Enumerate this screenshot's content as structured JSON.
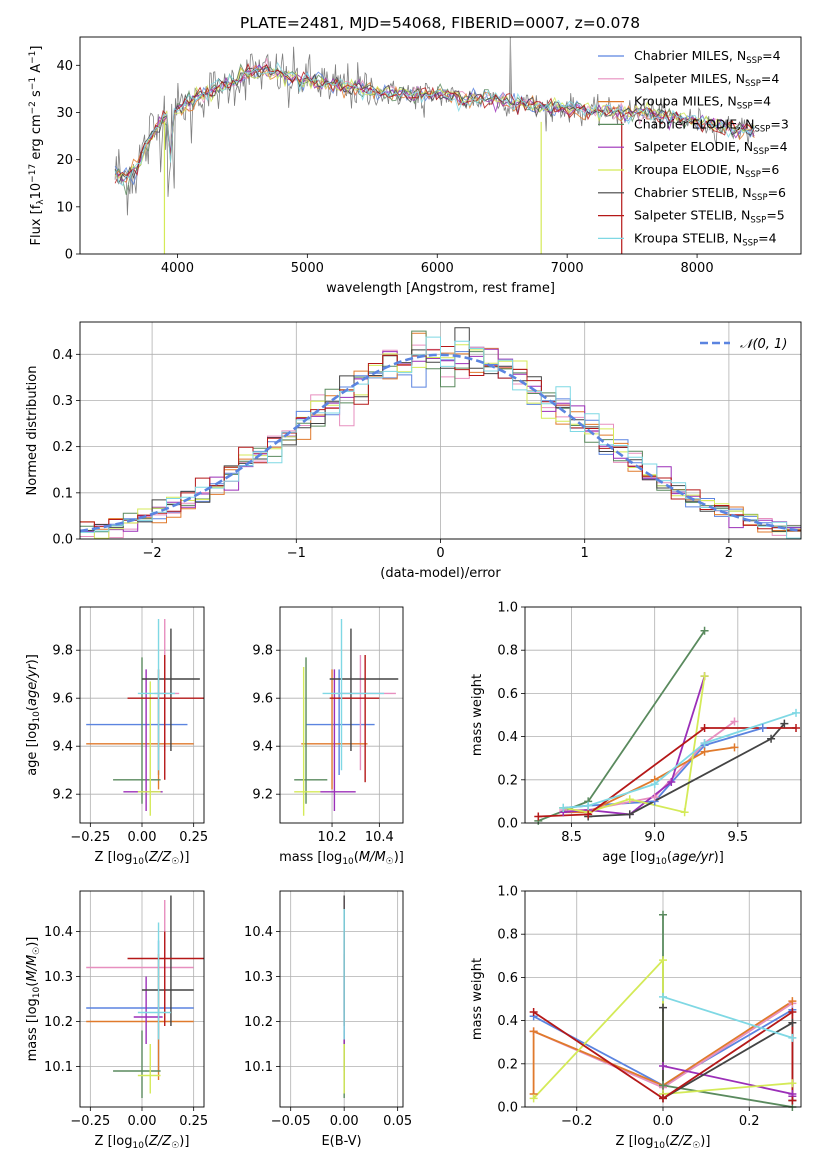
{
  "figure_title": "PLATE=2481, MJD=54068, FIBERID=0007, z=0.078",
  "models": [
    {
      "name": "Chabrier MILES",
      "n_ssp": "4",
      "color": "#5b84e0"
    },
    {
      "name": "Salpeter MILES",
      "n_ssp": "4",
      "color": "#e78fbf"
    },
    {
      "name": "Kroupa MILES",
      "n_ssp": "4",
      "color": "#e07a2c"
    },
    {
      "name": "Chabrier ELODIE",
      "n_ssp": "3",
      "color": "#5a8a5e"
    },
    {
      "name": "Salpeter ELODIE",
      "n_ssp": "4",
      "color": "#9b2fb8"
    },
    {
      "name": "Kroupa ELODIE",
      "n_ssp": "6",
      "color": "#d4ea58"
    },
    {
      "name": "Chabrier STELIB",
      "n_ssp": "6",
      "color": "#444444"
    },
    {
      "name": "Salpeter STELIB",
      "n_ssp": "5",
      "color": "#b51818"
    },
    {
      "name": "Kroupa STELIB",
      "n_ssp": "4",
      "color": "#7fd8e4"
    }
  ],
  "chart_data": [
    {
      "id": "spectrum",
      "type": "line",
      "xlabel": "wavelength [Angstrom, rest frame]",
      "ylabel": "Flux [f_λ 10^-17 erg cm^-2 s^-1 A^-1]",
      "xlim": [
        3250,
        8800
      ],
      "ylim": [
        0,
        46
      ],
      "xticks": [
        4000,
        5000,
        6000,
        7000,
        8000
      ],
      "yticks": [
        0,
        10,
        20,
        30,
        40
      ],
      "grid": false,
      "legend": "top-right",
      "observed_color": "#7f7f7f",
      "spectrum_knots": {
        "x": [
          3520,
          3600,
          3700,
          3800,
          3900,
          4000,
          4200,
          4400,
          4600,
          4800,
          5000,
          5200,
          5400,
          5600,
          5800,
          6000,
          6200,
          6400,
          6600,
          6800,
          7000,
          7200,
          7400,
          7600,
          7800,
          8000,
          8200,
          8440
        ],
        "y": [
          17,
          16,
          19,
          25,
          29,
          31,
          34,
          36,
          39,
          38,
          37,
          36,
          35,
          34,
          34,
          34,
          33,
          33,
          32,
          31,
          31,
          30,
          30,
          30,
          29,
          28,
          27,
          26
        ]
      }
    },
    {
      "id": "residuals",
      "type": "histogram",
      "xlabel": "(data-model)/error",
      "ylabel": "Normed distribution",
      "xlim": [
        -2.5,
        2.5
      ],
      "ylim": [
        0,
        0.47
      ],
      "xticks": [
        -2,
        -1,
        0,
        1,
        2
      ],
      "yticks": [
        0.0,
        0.1,
        0.2,
        0.3,
        0.4
      ],
      "grid": true,
      "legend": "top-right",
      "reference_curve": {
        "label": "𝒩(0, 1)",
        "mean": 0,
        "sigma": 1,
        "color": "#5b84e0"
      },
      "bin_width": 0.1
    },
    {
      "id": "Z_vs_age",
      "type": "errorbar",
      "xlabel": "Z [log10(Z/Z☉)]",
      "ylabel": "age  [log10(age/yr)]",
      "xlim": [
        -0.3,
        0.3
      ],
      "ylim": [
        9.08,
        9.98
      ],
      "xticks": [
        -0.25,
        0.0,
        0.25
      ],
      "yticks": [
        9.2,
        9.4,
        9.6,
        9.8
      ],
      "grid": true,
      "points": [
        {
          "x": 0.08,
          "y": 9.49,
          "xlo": -0.27,
          "xhi": 0.22,
          "ylo": 9.28,
          "yhi": 9.72
        },
        {
          "x": 0.11,
          "y": 9.62,
          "xlo": 0.06,
          "xhi": 0.18,
          "ylo": 9.38,
          "yhi": 9.93
        },
        {
          "x": 0.08,
          "y": 9.41,
          "xlo": -0.27,
          "xhi": 0.25,
          "ylo": 9.22,
          "yhi": 9.72
        },
        {
          "x": 0.0,
          "y": 9.26,
          "xlo": -0.14,
          "xhi": 0.09,
          "ylo": 9.16,
          "yhi": 9.77
        },
        {
          "x": 0.02,
          "y": 9.21,
          "xlo": -0.09,
          "xhi": 0.1,
          "ylo": 9.13,
          "yhi": 9.72
        },
        {
          "x": 0.04,
          "y": 9.21,
          "xlo": -0.02,
          "xhi": 0.09,
          "ylo": 9.11,
          "yhi": 9.67
        },
        {
          "x": 0.14,
          "y": 9.68,
          "xlo": 0.0,
          "xhi": 0.28,
          "ylo": 9.38,
          "yhi": 9.89
        },
        {
          "x": 0.11,
          "y": 9.6,
          "xlo": -0.07,
          "xhi": 0.3,
          "ylo": 9.26,
          "yhi": 9.78
        },
        {
          "x": 0.08,
          "y": 9.62,
          "xlo": -0.02,
          "xhi": 0.16,
          "ylo": 9.3,
          "yhi": 9.93
        }
      ]
    },
    {
      "id": "mass_vs_age",
      "type": "errorbar",
      "xlabel": "mass [log10(M/M☉)]",
      "ylabel": "",
      "xlim": [
        9.98,
        10.5
      ],
      "ylim": [
        9.08,
        9.98
      ],
      "xticks": [
        10.2,
        10.4
      ],
      "yticks": [
        9.2,
        9.4,
        9.6,
        9.8
      ],
      "grid": true,
      "points": [
        {
          "x": 10.23,
          "y": 9.49,
          "xlo": 10.09,
          "xhi": 10.38,
          "ylo": 9.28,
          "yhi": 9.72
        },
        {
          "x": 10.32,
          "y": 9.62,
          "xlo": 10.22,
          "xhi": 10.47,
          "ylo": 9.3,
          "yhi": 9.78
        },
        {
          "x": 10.2,
          "y": 9.41,
          "xlo": 10.07,
          "xhi": 10.35,
          "ylo": 9.22,
          "yhi": 9.72
        },
        {
          "x": 10.09,
          "y": 9.26,
          "xlo": 10.04,
          "xhi": 10.18,
          "ylo": 9.16,
          "yhi": 9.77
        },
        {
          "x": 10.21,
          "y": 9.21,
          "xlo": 10.15,
          "xhi": 10.3,
          "ylo": 9.13,
          "yhi": 9.72
        },
        {
          "x": 10.08,
          "y": 9.21,
          "xlo": 10.04,
          "xhi": 10.15,
          "ylo": 9.11,
          "yhi": 9.73
        },
        {
          "x": 10.28,
          "y": 9.68,
          "xlo": 10.19,
          "xhi": 10.48,
          "ylo": 9.38,
          "yhi": 9.89
        },
        {
          "x": 10.34,
          "y": 9.6,
          "xlo": 10.19,
          "xhi": 10.4,
          "ylo": 9.25,
          "yhi": 9.78
        },
        {
          "x": 10.24,
          "y": 9.62,
          "xlo": 10.16,
          "xhi": 10.42,
          "ylo": 9.3,
          "yhi": 9.93
        }
      ]
    },
    {
      "id": "age_vs_weight",
      "type": "line",
      "xlabel": "age  [log10(age/yr)]",
      "ylabel": "mass weight",
      "xlim": [
        8.22,
        9.88
      ],
      "ylim": [
        0,
        1.0
      ],
      "xticks": [
        8.5,
        9.0,
        9.5
      ],
      "yticks": [
        0.0,
        0.2,
        0.4,
        0.6,
        0.8,
        1.0
      ],
      "grid": true,
      "series": [
        {
          "x": [
            8.45,
            8.6,
            9.0,
            9.3,
            9.65
          ],
          "y": [
            0.07,
            0.08,
            0.1,
            0.36,
            0.44
          ]
        },
        {
          "x": [
            8.45,
            8.6,
            9.0,
            9.3,
            9.48
          ],
          "y": [
            0.06,
            0.06,
            0.12,
            0.37,
            0.47
          ]
        },
        {
          "x": [
            8.45,
            8.6,
            9.0,
            9.3,
            9.48
          ],
          "y": [
            0.05,
            0.05,
            0.2,
            0.33,
            0.35
          ]
        },
        {
          "x": [
            8.3,
            8.6,
            9.3
          ],
          "y": [
            0.01,
            0.1,
            0.89
          ]
        },
        {
          "x": [
            8.45,
            8.6,
            8.85,
            9.1,
            9.3
          ],
          "y": [
            0.05,
            0.06,
            0.04,
            0.19,
            0.68
          ]
        },
        {
          "x": [
            8.45,
            8.6,
            8.85,
            9.18,
            9.3
          ],
          "y": [
            0.07,
            0.05,
            0.11,
            0.05,
            0.68
          ]
        },
        {
          "x": [
            8.6,
            8.85,
            9.7,
            9.78
          ],
          "y": [
            0.03,
            0.04,
            0.39,
            0.46
          ]
        },
        {
          "x": [
            8.3,
            8.6,
            9.3,
            9.85
          ],
          "y": [
            0.03,
            0.04,
            0.44,
            0.44
          ]
        },
        {
          "x": [
            8.45,
            8.6,
            9.0,
            9.3,
            9.85
          ],
          "y": [
            0.07,
            0.08,
            0.18,
            0.37,
            0.51
          ]
        }
      ]
    },
    {
      "id": "Z_vs_mass",
      "type": "errorbar",
      "xlabel": "Z [log10(Z/Z☉)]",
      "ylabel": "mass [log10(M/M☉)]",
      "xlim": [
        -0.3,
        0.3
      ],
      "ylim": [
        10.01,
        10.49
      ],
      "xticks": [
        -0.25,
        0.0,
        0.25
      ],
      "yticks": [
        10.1,
        10.2,
        10.3,
        10.4
      ],
      "grid": true,
      "points": [
        {
          "x": 0.08,
          "y": 10.23,
          "xlo": -0.27,
          "xhi": 0.25,
          "ylo": 10.09,
          "yhi": 10.38
        },
        {
          "x": 0.11,
          "y": 10.32,
          "xlo": -0.27,
          "xhi": 0.25,
          "ylo": 10.22,
          "yhi": 10.47
        },
        {
          "x": 0.08,
          "y": 10.2,
          "xlo": -0.27,
          "xhi": 0.25,
          "ylo": 10.07,
          "yhi": 10.35
        },
        {
          "x": 0.0,
          "y": 10.09,
          "xlo": -0.14,
          "xhi": 0.09,
          "ylo": 10.03,
          "yhi": 10.18
        },
        {
          "x": 0.02,
          "y": 10.21,
          "xlo": -0.04,
          "xhi": 0.1,
          "ylo": 10.15,
          "yhi": 10.3
        },
        {
          "x": 0.04,
          "y": 10.08,
          "xlo": -0.02,
          "xhi": 0.09,
          "ylo": 10.04,
          "yhi": 10.15
        },
        {
          "x": 0.14,
          "y": 10.27,
          "xlo": 0.0,
          "xhi": 0.25,
          "ylo": 10.19,
          "yhi": 10.48
        },
        {
          "x": 0.11,
          "y": 10.34,
          "xlo": -0.07,
          "xhi": 0.3,
          "ylo": 10.19,
          "yhi": 10.4
        },
        {
          "x": 0.08,
          "y": 10.22,
          "xlo": -0.02,
          "xhi": 0.14,
          "ylo": 10.16,
          "yhi": 10.42
        }
      ]
    },
    {
      "id": "ebv_vs_mass",
      "type": "errorbar",
      "xlabel": "E(B-V)",
      "ylabel": "",
      "xlim": [
        -0.06,
        0.055
      ],
      "ylim": [
        10.01,
        10.49
      ],
      "xticks": [
        -0.05,
        0.0,
        0.05
      ],
      "yticks": [
        10.1,
        10.2,
        10.3,
        10.4
      ],
      "grid": true,
      "points": [
        {
          "x": 0.0,
          "y": 10.23,
          "xlo": 0.0,
          "xhi": 0.0,
          "ylo": 10.09,
          "yhi": 10.38
        },
        {
          "x": 0.0,
          "y": 10.32,
          "xlo": 0.0,
          "xhi": 0.0,
          "ylo": 10.22,
          "yhi": 10.47
        },
        {
          "x": 0.0,
          "y": 10.2,
          "xlo": 0.0,
          "xhi": 0.0,
          "ylo": 10.07,
          "yhi": 10.35
        },
        {
          "x": 0.0,
          "y": 10.09,
          "xlo": 0.0,
          "xhi": 0.0,
          "ylo": 10.03,
          "yhi": 10.18
        },
        {
          "x": 0.0,
          "y": 10.21,
          "xlo": 0.0,
          "xhi": 0.0,
          "ylo": 10.15,
          "yhi": 10.3
        },
        {
          "x": 0.0,
          "y": 10.08,
          "xlo": 0.0,
          "xhi": 0.0,
          "ylo": 10.04,
          "yhi": 10.15
        },
        {
          "x": 0.0,
          "y": 10.27,
          "xlo": 0.0,
          "xhi": 0.0,
          "ylo": 10.19,
          "yhi": 10.48
        },
        {
          "x": 0.0,
          "y": 10.34,
          "xlo": 0.0,
          "xhi": 0.0,
          "ylo": 10.19,
          "yhi": 10.4
        },
        {
          "x": 0.0,
          "y": 10.22,
          "xlo": 0.0,
          "xhi": 0.0,
          "ylo": 10.16,
          "yhi": 10.45
        }
      ]
    },
    {
      "id": "Z_vs_weight",
      "type": "line",
      "xlabel": "Z [log10(Z/Z☉)]",
      "ylabel": "mass weight",
      "xlim": [
        -0.32,
        0.32
      ],
      "ylim": [
        0,
        1.0
      ],
      "xticks": [
        -0.2,
        0.0,
        0.2
      ],
      "yticks": [
        0.0,
        0.2,
        0.4,
        0.6,
        0.8,
        1.0
      ],
      "grid": true,
      "series": [
        {
          "x": [
            -0.3,
            0.0,
            0.3
          ],
          "y": [
            0.42,
            0.1,
            0.45
          ]
        },
        {
          "x": [
            -0.3,
            0.0,
            0.3
          ],
          "y": [
            0.35,
            0.09,
            0.48
          ]
        },
        {
          "x": [
            -0.3,
            -0.3,
            0.0,
            0.3
          ],
          "y": [
            0.06,
            0.35,
            0.1,
            0.49
          ]
        },
        {
          "x": [
            0.0,
            0.0,
            0.3
          ],
          "y": [
            0.89,
            0.1,
            0.0
          ]
        },
        {
          "x": [
            0.0,
            0.3,
            0.3
          ],
          "y": [
            0.19,
            0.06,
            0.05
          ]
        },
        {
          "x": [
            -0.3,
            0.0,
            0.0,
            0.3
          ],
          "y": [
            0.04,
            0.68,
            0.06,
            0.11
          ]
        },
        {
          "x": [
            0.0,
            0.0,
            0.3,
            0.3
          ],
          "y": [
            0.46,
            0.04,
            0.39,
            0.03
          ]
        },
        {
          "x": [
            -0.3,
            0.0,
            0.3,
            0.3
          ],
          "y": [
            0.44,
            0.04,
            0.44,
            0.03
          ]
        },
        {
          "x": [
            0.0,
            0.3
          ],
          "y": [
            0.51,
            0.32
          ]
        }
      ]
    }
  ]
}
